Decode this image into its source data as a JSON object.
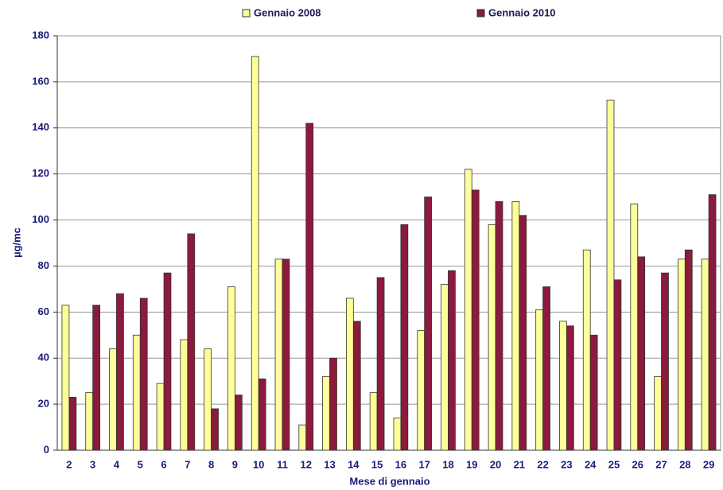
{
  "chart_data": {
    "type": "bar",
    "categories": [
      "2",
      "3",
      "4",
      "5",
      "6",
      "7",
      "8",
      "9",
      "10",
      "11",
      "12",
      "13",
      "14",
      "15",
      "16",
      "17",
      "18",
      "19",
      "20",
      "21",
      "22",
      "23",
      "24",
      "25",
      "26",
      "27",
      "28",
      "29"
    ],
    "series": [
      {
        "name": "Gennaio 2008",
        "color": "#ffff99",
        "values": [
          63,
          25,
          44,
          50,
          29,
          48,
          44,
          71,
          171,
          83,
          11,
          32,
          66,
          25,
          14,
          52,
          72,
          122,
          98,
          108,
          61,
          56,
          87,
          152,
          107,
          32,
          83,
          83
        ]
      },
      {
        "name": "Gennaio 2010",
        "color": "#8b1a3c",
        "values": [
          23,
          63,
          68,
          66,
          77,
          94,
          18,
          24,
          31,
          83,
          142,
          40,
          56,
          75,
          98,
          110,
          78,
          113,
          108,
          102,
          71,
          54,
          50,
          74,
          84,
          77,
          87,
          111
        ]
      }
    ],
    "x_label": "Mese di gennaio",
    "y_label": "µg/mc",
    "ylim": [
      0,
      180
    ],
    "yticks": [
      0,
      20,
      40,
      60,
      80,
      100,
      120,
      140,
      160,
      180
    ],
    "grid": true,
    "legend": "top"
  }
}
